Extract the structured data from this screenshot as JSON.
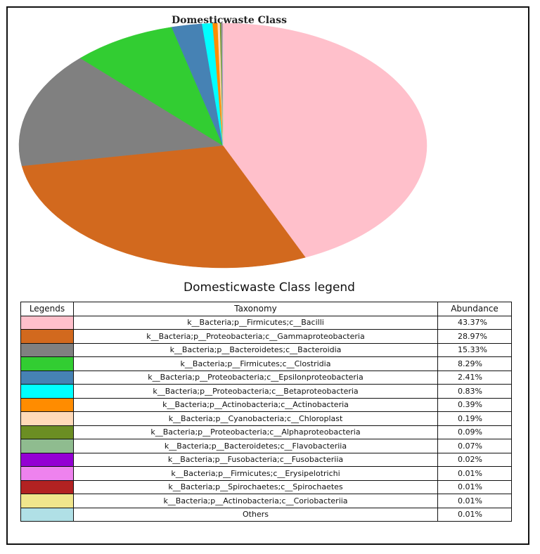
{
  "chart_data": {
    "type": "pie",
    "title": "Domesticwaste Class",
    "legend_title": "Domesticwaste Class legend",
    "headers": [
      "Legends",
      "Taxonomy",
      "Abundance"
    ],
    "slices": [
      {
        "label": "k__Bacteria;p__Firmicutes;c__Bacilli",
        "value": 43.37,
        "display": "43.37%",
        "color": "#ffc0cb"
      },
      {
        "label": "k__Bacteria;p__Proteobacteria;c__Gammaproteobacteria",
        "value": 28.97,
        "display": "28.97%",
        "color": "#d2691e"
      },
      {
        "label": "k__Bacteria;p__Bacteroidetes;c__Bacteroidia",
        "value": 15.33,
        "display": "15.33%",
        "color": "#808080"
      },
      {
        "label": "k__Bacteria;p__Firmicutes;c__Clostridia",
        "value": 8.29,
        "display": "8.29%",
        "color": "#32cd32"
      },
      {
        "label": "k__Bacteria;p__Proteobacteria;c__Epsilonproteobacteria",
        "value": 2.41,
        "display": "2.41%",
        "color": "#4682b4"
      },
      {
        "label": "k__Bacteria;p__Proteobacteria;c__Betaproteobacteria",
        "value": 0.83,
        "display": "0.83%",
        "color": "#00ffff"
      },
      {
        "label": "k__Bacteria;p__Actinobacteria;c__Actinobacteria",
        "value": 0.39,
        "display": "0.39%",
        "color": "#ff8c00"
      },
      {
        "label": "k__Bacteria;p__Cyanobacteria;c__Chloroplast",
        "value": 0.19,
        "display": "0.19%",
        "color": "#ffdab9"
      },
      {
        "label": "k__Bacteria;p__Proteobacteria;c__Alphaproteobacteria",
        "value": 0.09,
        "display": "0.09%",
        "color": "#6b8e23"
      },
      {
        "label": "k__Bacteria;p__Bacteroidetes;c__Flavobacteriia",
        "value": 0.07,
        "display": "0.07%",
        "color": "#8fbc8f"
      },
      {
        "label": "k__Bacteria;p__Fusobacteria;c__Fusobacteriia",
        "value": 0.02,
        "display": "0.02%",
        "color": "#9400d3"
      },
      {
        "label": "k__Bacteria;p__Firmicutes;c__Erysipelotrichi",
        "value": 0.01,
        "display": "0.01%",
        "color": "#ee82ee"
      },
      {
        "label": "k__Bacteria;p__Spirochaetes;c__Spirochaetes",
        "value": 0.01,
        "display": "0.01%",
        "color": "#b22222"
      },
      {
        "label": "k__Bacteria;p__Actinobacteria;c__Coriobacteriia",
        "value": 0.01,
        "display": "0.01%",
        "color": "#f0e68c"
      },
      {
        "label": "Others",
        "value": 0.01,
        "display": "0.01%",
        "color": "#b0e0e6"
      }
    ]
  }
}
